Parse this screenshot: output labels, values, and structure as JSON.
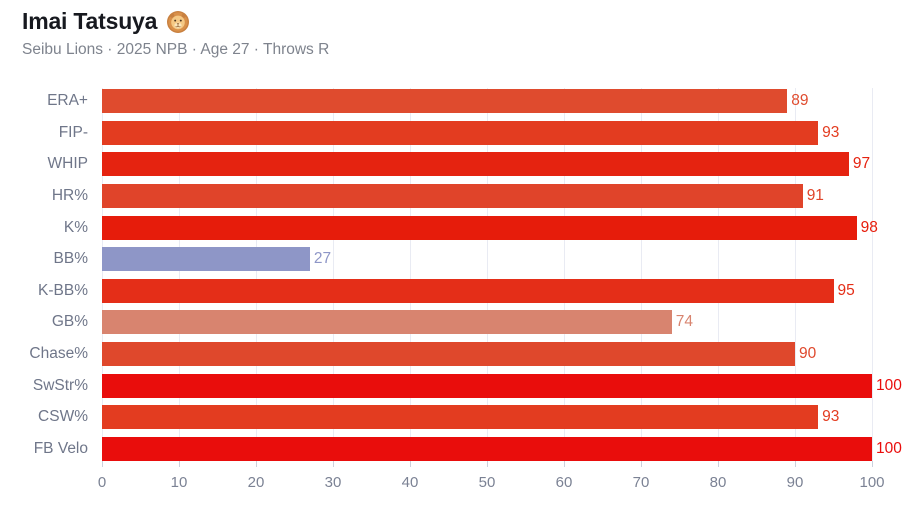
{
  "header": {
    "title": "Imai Tatsuya",
    "emoji": "🦁",
    "emoji_name": "lion-face",
    "subtitle": "Seibu Lions · 2025 NPB · Age 27 · Throws R"
  },
  "colors": {
    "background": "#ffffff",
    "title": "#17191f",
    "subtitle": "#7e838d",
    "row_label": "#6f7689",
    "tick_label": "#7b8294",
    "gridline": "#e9ebf3",
    "tick_mark": "#ccd0dc",
    "low_percentile_bar": "#8e96c7",
    "high_percentile_bar": "#e90d0c"
  },
  "chart_data": {
    "type": "bar",
    "orientation": "horizontal",
    "title": "",
    "xlabel": "",
    "ylabel": "",
    "xlim": [
      0,
      100
    ],
    "x_ticks": [
      0,
      10,
      20,
      30,
      40,
      50,
      60,
      70,
      80,
      90,
      100
    ],
    "grid": "vertical gridlines every 10, light gray",
    "legend": "none",
    "value_labels": "shown at right end of each bar, colored same as bar",
    "categories": [
      "ERA+",
      "FIP-",
      "WHIP",
      "HR%",
      "K%",
      "BB%",
      "K-BB%",
      "GB%",
      "Chase%",
      "SwStr%",
      "CSW%",
      "FB Velo"
    ],
    "values": [
      89,
      93,
      97,
      91,
      98,
      27,
      95,
      74,
      90,
      100,
      93,
      100
    ],
    "bar_colors": [
      "#df4b2e",
      "#e33c20",
      "#e52310",
      "#e0442a",
      "#e61c0b",
      "#8e96c7",
      "#e42e18",
      "#d8846f",
      "#df482c",
      "#e90d0c",
      "#e33c20",
      "#e90d0c"
    ]
  }
}
